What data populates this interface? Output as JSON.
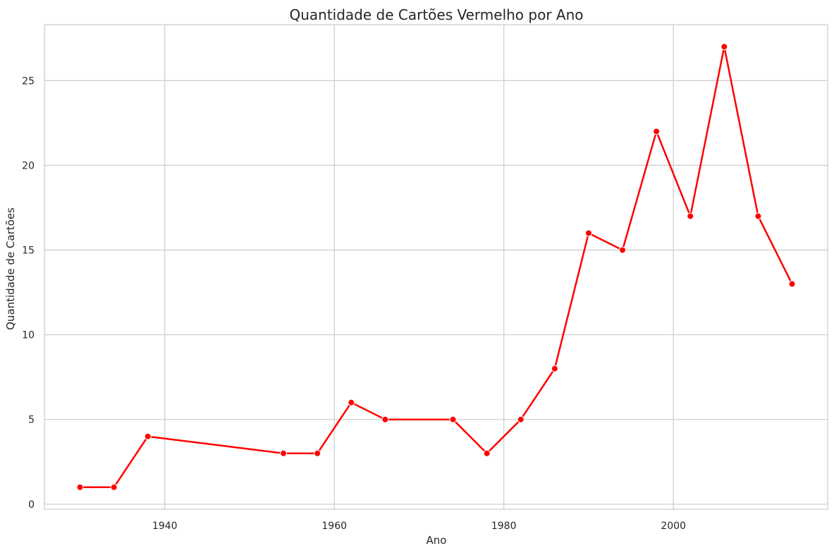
{
  "chart_data": {
    "type": "line",
    "title": "Quantidade de Cartões Vermelho por Ano",
    "xlabel": "Ano",
    "ylabel": "Quantidade de Cartões",
    "x": [
      1930,
      1934,
      1938,
      1954,
      1958,
      1962,
      1966,
      1974,
      1978,
      1982,
      1986,
      1990,
      1994,
      1998,
      2002,
      2006,
      2010,
      2014
    ],
    "series": [
      {
        "values": [
          1,
          1,
          4,
          3,
          3,
          6,
          5,
          5,
          3,
          5,
          8,
          16,
          15,
          22,
          17,
          27,
          17,
          13
        ],
        "color": "#ff0000",
        "marker": "circle"
      }
    ],
    "xlim": [
      1925.8,
      2018.2
    ],
    "ylim": [
      -0.3,
      28.3
    ],
    "xticks": [
      1940,
      1960,
      1980,
      2000
    ],
    "yticks": [
      0,
      5,
      10,
      15,
      20,
      25
    ],
    "xtick_labels": [
      "1940",
      "1960",
      "1980",
      "2000"
    ],
    "ytick_labels": [
      "0",
      "5",
      "10",
      "15",
      "20",
      "25"
    ],
    "grid": true,
    "legend": "none"
  }
}
